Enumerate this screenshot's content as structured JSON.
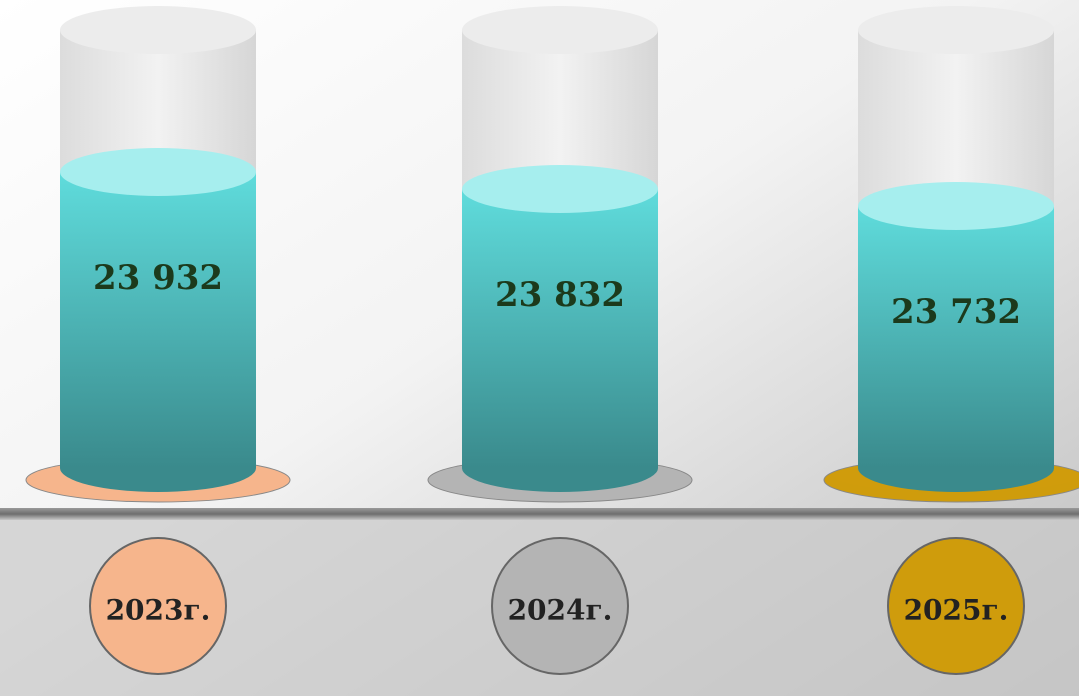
{
  "chart_data": {
    "type": "cylinder",
    "categories": [
      "2023г.",
      "2024г.",
      "2025г."
    ],
    "values": [
      23932,
      23832,
      23732
    ],
    "value_labels": [
      "23 932",
      "23 832",
      "23 732"
    ],
    "color": "#4cc3c3",
    "colors": [
      "#f6b58c",
      "#b4b4b4",
      "#cf9c0c"
    ]
  }
}
